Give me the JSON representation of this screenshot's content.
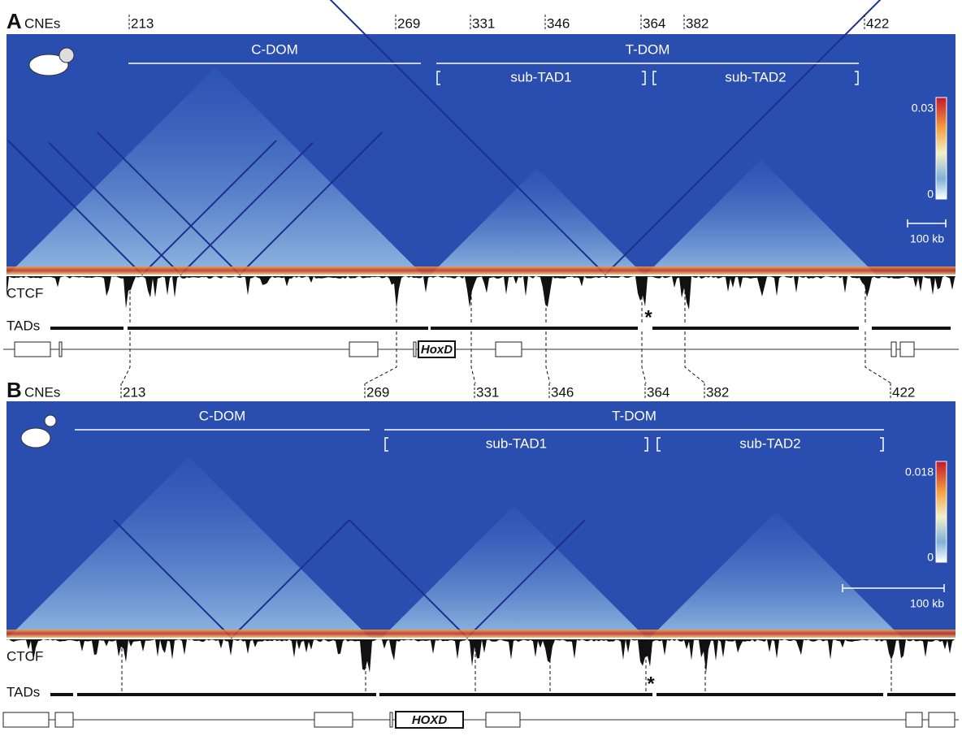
{
  "panels": [
    {
      "label": "A",
      "cnes_label": "CNEs",
      "cnes": [
        213,
        269,
        331,
        346,
        364,
        382,
        422
      ],
      "c_dom": "C-DOM",
      "t_dom": "T-DOM",
      "sub_tad1": "sub-TAD1",
      "sub_tad2": "sub-TAD2",
      "scale_max": 0.03,
      "scale_min": 0,
      "scale_bar": "100 kb",
      "ctcf": "CTCF",
      "tads": "TADs",
      "asterisk": "*",
      "locus": "HoxD"
    },
    {
      "label": "B",
      "cnes_label": "CNEs",
      "cnes": [
        213,
        269,
        331,
        346,
        364,
        382,
        422
      ],
      "c_dom": "C-DOM",
      "t_dom": "T-DOM",
      "sub_tad1": "sub-TAD1",
      "sub_tad2": "sub-TAD2",
      "scale_max": 0.018,
      "scale_min": 0,
      "scale_bar": "100 kb",
      "ctcf": "CTCF",
      "tads": "TADs",
      "asterisk": "*",
      "locus": "HOXD"
    }
  ]
}
